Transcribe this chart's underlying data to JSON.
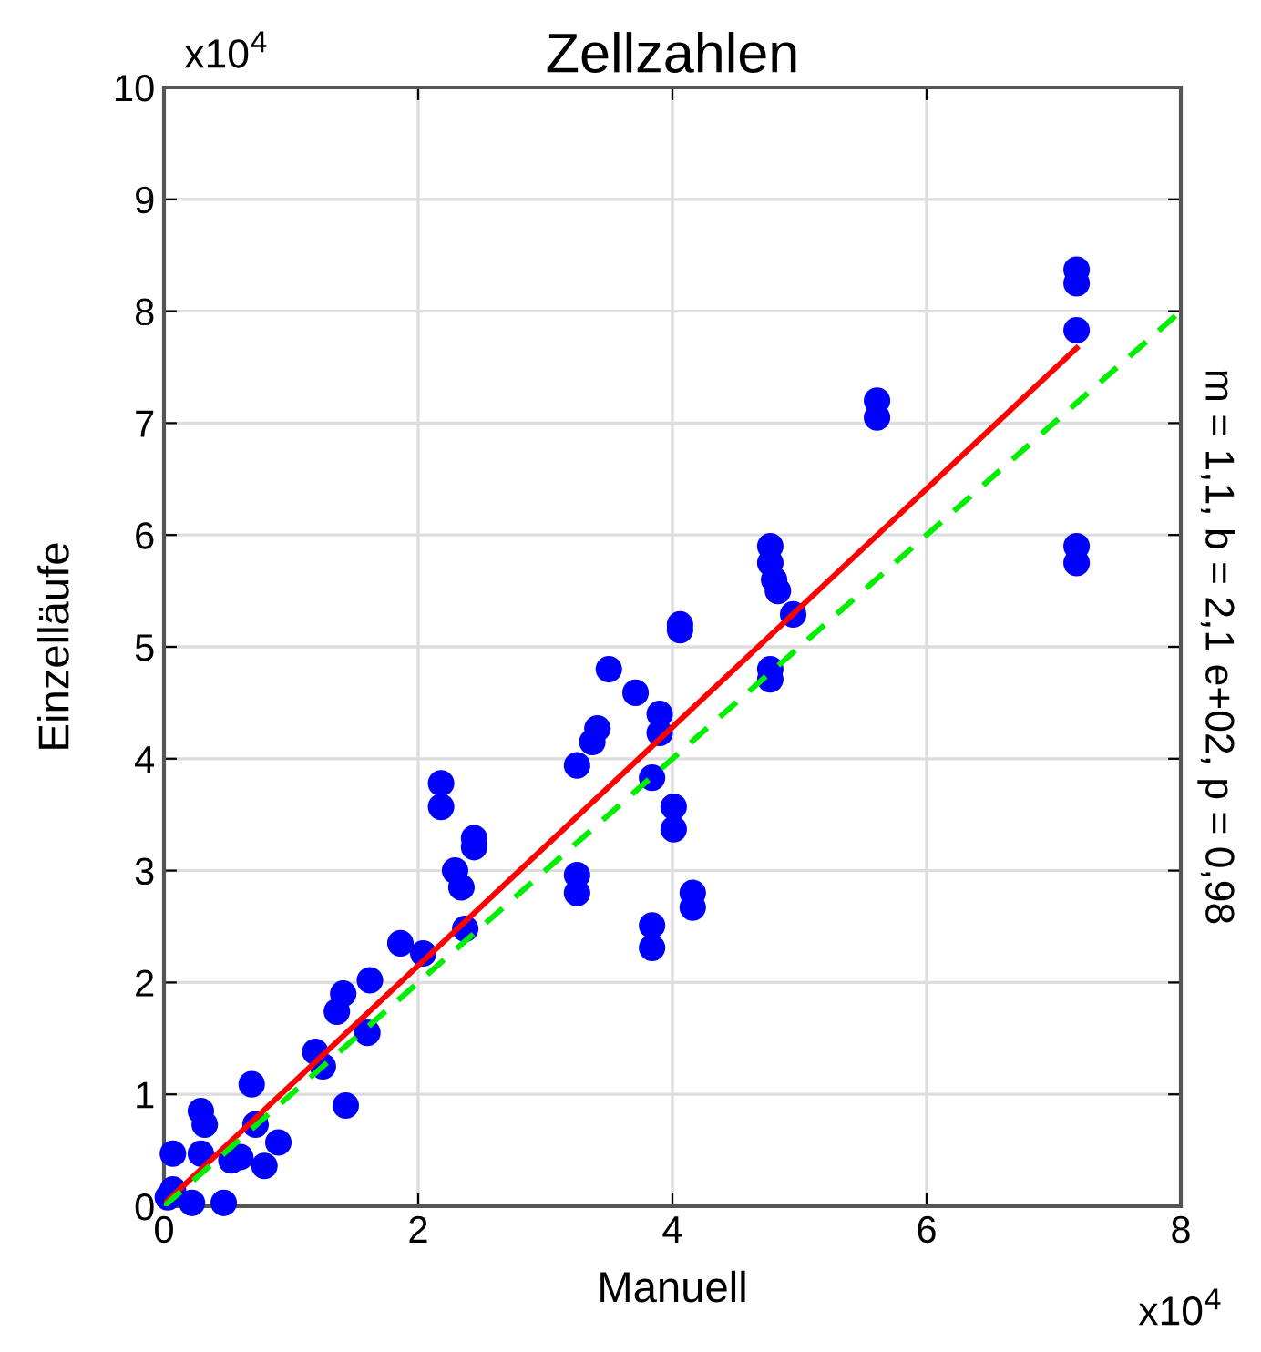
{
  "chart_data": {
    "type": "scatter",
    "title": "Zellzahlen",
    "xlabel": "Manuell",
    "ylabel": "Einzelläufe",
    "annotations": [
      "x10$^{4}$",
      "x10$^{4}$",
      "m = 1,1, b = 2,1 e+02, p = 0,98"
    ],
    "xlim": [
      0,
      8
    ],
    "ylim": [
      0,
      10
    ],
    "xticks": [
      0,
      2,
      4,
      6,
      8
    ],
    "yticks": [
      0,
      1,
      2,
      3,
      4,
      5,
      6,
      7,
      8,
      9,
      10
    ],
    "grid": true,
    "marker": "circle",
    "series": [
      {
        "color": "#0000ff",
        "x": [
          0.03,
          0.07,
          0.07,
          0.22,
          0.29,
          0.29,
          0.32,
          0.47,
          0.53,
          0.6,
          0.69,
          0.72,
          0.79,
          0.9,
          1.19,
          1.25,
          1.36,
          1.41,
          1.43,
          1.6,
          1.62,
          1.86,
          2.04,
          2.18,
          2.18,
          2.29,
          2.34,
          2.37,
          2.44,
          2.44,
          3.25,
          3.25,
          3.25,
          3.37,
          3.41,
          3.5,
          3.71,
          3.84,
          3.84,
          3.84,
          3.9,
          3.9,
          4.01,
          4.01,
          4.06,
          4.06,
          4.16,
          4.16,
          4.77,
          4.77,
          4.8,
          4.83,
          4.95,
          4.77,
          4.77,
          5.61,
          5.61,
          7.18,
          7.18,
          7.18,
          7.18,
          7.18
        ],
        "values": [
          0.08,
          0.15,
          0.47,
          0.03,
          0.47,
          0.85,
          0.73,
          0.03,
          0.41,
          0.44,
          1.09,
          0.73,
          0.36,
          0.57,
          1.38,
          1.25,
          1.74,
          1.9,
          0.9,
          1.55,
          2.02,
          2.35,
          2.26,
          3.78,
          3.57,
          3.0,
          2.85,
          2.48,
          3.29,
          3.21,
          3.94,
          2.96,
          2.8,
          4.15,
          4.27,
          4.8,
          4.59,
          3.83,
          2.51,
          2.31,
          4.4,
          4.23,
          3.57,
          3.37,
          5.2,
          5.15,
          2.8,
          2.67,
          5.9,
          5.75,
          5.6,
          5.5,
          5.29,
          4.8,
          4.71,
          7.2,
          7.05,
          8.37,
          8.25,
          7.83,
          5.9,
          5.75
        ]
      },
      {
        "type": "line",
        "color": "#ff0000",
        "line_style": "solid",
        "marker": "none",
        "x": [
          0,
          7.18
        ],
        "values": [
          0.02,
          7.67
        ]
      },
      {
        "type": "line",
        "color": "#00ee00",
        "line_style": "dashed",
        "marker": "none",
        "x": [
          0,
          8
        ],
        "values": [
          0,
          8
        ]
      }
    ]
  }
}
